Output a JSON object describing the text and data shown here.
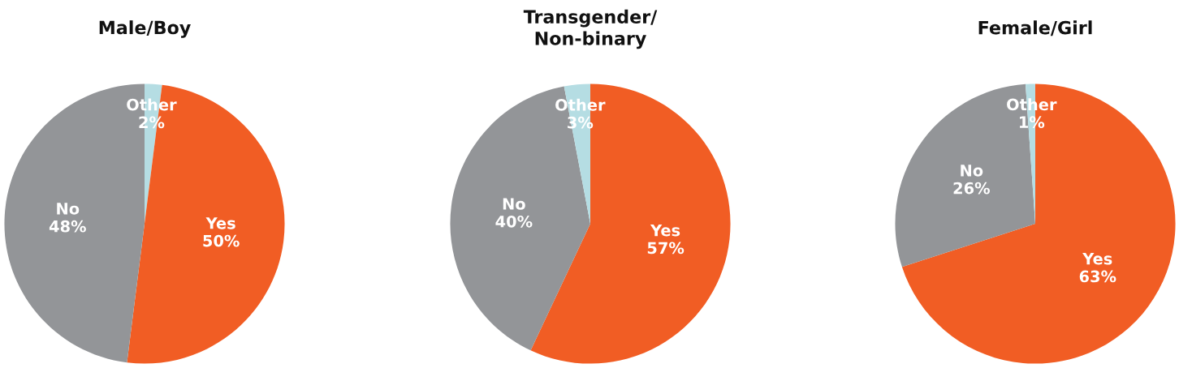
{
  "chart_data": [
    {
      "type": "pie",
      "title": "Male/Boy",
      "categories": [
        "Other",
        "Yes",
        "No"
      ],
      "values": [
        2,
        50,
        48
      ],
      "value_labels": [
        "2%",
        "50%",
        "48%"
      ],
      "colors": [
        "#b5dde3",
        "#f15d24",
        "#939598"
      ]
    },
    {
      "type": "pie",
      "title": "Transgender/\nNon-binary",
      "categories": [
        "Yes",
        "No",
        "Other"
      ],
      "values": [
        57,
        40,
        3
      ],
      "value_labels": [
        "57%",
        "40%",
        "3%"
      ],
      "colors": [
        "#f15d24",
        "#939598",
        "#b5dde3"
      ]
    },
    {
      "type": "pie",
      "title": "Female/Girl",
      "categories": [
        "Yes",
        "No",
        "Other"
      ],
      "values": [
        63,
        26,
        1
      ],
      "value_labels": [
        "63%",
        "26%",
        "1%"
      ],
      "colors": [
        "#f15d24",
        "#939598",
        "#b5dde3"
      ]
    }
  ]
}
